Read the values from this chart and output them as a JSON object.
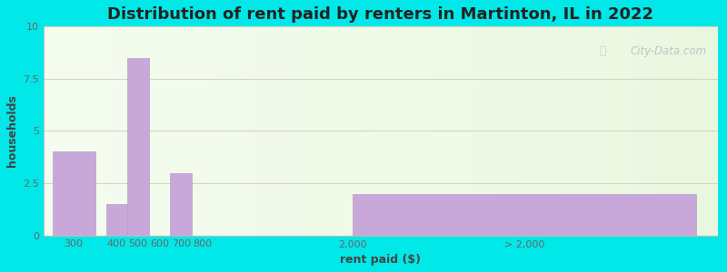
{
  "title": "Distribution of rent paid by renters in Martinton, IL in 2022",
  "xlabel": "rent paid ($)",
  "ylabel": "households",
  "categories": [
    "300",
    "400",
    "500",
    "600",
    "700",
    "800",
    "2,000",
    "> 2,000"
  ],
  "values": [
    4,
    1.5,
    8.5,
    0,
    3,
    0,
    0,
    2
  ],
  "x_positions": [
    0.5,
    1.5,
    2.0,
    2.5,
    3.0,
    3.5,
    7.0,
    11.0
  ],
  "bar_widths": [
    1.0,
    0.5,
    0.5,
    0.5,
    0.5,
    0.5,
    0.5,
    8.0
  ],
  "tick_positions": [
    0.5,
    1.5,
    2.0,
    2.5,
    3.0,
    3.5,
    7.0,
    11.0
  ],
  "bar_color": "#c8a8d8",
  "bar_edge_color": "#b8a0c8",
  "ylim": [
    0,
    10
  ],
  "xlim": [
    -0.2,
    15.5
  ],
  "yticks": [
    0,
    2.5,
    5,
    7.5,
    10
  ],
  "background_color": "#00e8e8",
  "title_fontsize": 13,
  "axis_label_fontsize": 9,
  "tick_fontsize": 8,
  "watermark_text": "City-Data.com",
  "grid_color": "#d0d8c0",
  "plot_bg_left": "#f5faf0",
  "plot_bg_right": "#e8f5e0"
}
